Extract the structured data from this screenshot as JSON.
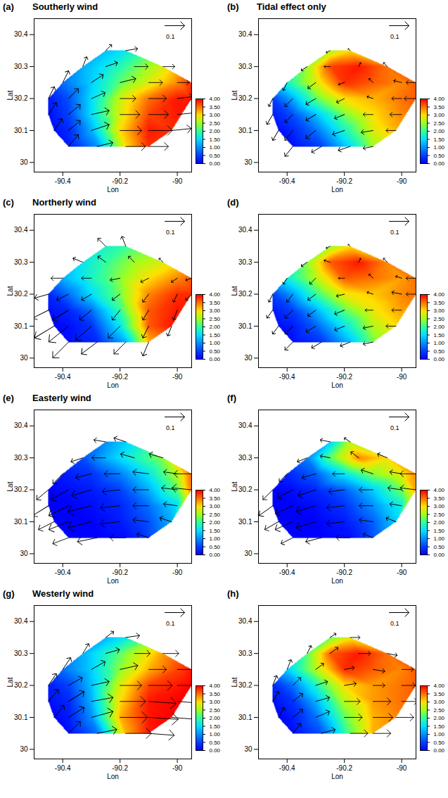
{
  "chart_data": {
    "type": "vector_map",
    "x_label": "Lon",
    "y_label": "Lat",
    "xlim": [
      -90.5,
      -89.95
    ],
    "xticks": [
      -90.4,
      -90.2,
      -90
    ],
    "ylim": [
      29.97,
      30.45
    ],
    "yticks": [
      30,
      30.1,
      30.2,
      30.3,
      30.4
    ],
    "colorbar": {
      "range": [
        0,
        4
      ],
      "ticks": [
        {
          "value": 0,
          "label": "0.00"
        },
        {
          "value": 0.5,
          "label": "0.50"
        },
        {
          "value": 1,
          "label": "1.00"
        },
        {
          "value": 1.5,
          "label": "1.50"
        },
        {
          "value": 2,
          "label": "2.00"
        },
        {
          "value": 2.5,
          "label": "2.50"
        },
        {
          "value": 3,
          "label": "3.00"
        },
        {
          "value": 3.5,
          "label": "3.50"
        },
        {
          "value": 4,
          "label": "4.00"
        }
      ],
      "colors": [
        "#0000ff",
        "#0040ff",
        "#0090ff",
        "#00e0ff",
        "#30ffa0",
        "#a0ff20",
        "#ffe000",
        "#ff7000",
        "#ff0000"
      ]
    },
    "reference_vector": 0.1,
    "lon": [
      -90.38,
      -90.28,
      -90.18,
      -90.1,
      -90.43,
      -90.38,
      -90.3,
      -90.2,
      -90.1,
      -90.02,
      -90.45,
      -90.38,
      -90.3,
      -90.2,
      -90.1,
      -90,
      -90.45,
      -90.38,
      -90.3,
      -90.2,
      -90.1,
      -90,
      -89.95,
      -90.4,
      -90.3,
      -90.2,
      -90.1,
      -90,
      -89.95,
      -90.33,
      -90.25,
      -90.15,
      -90.05,
      -90.25,
      -90.18
    ],
    "lat": [
      30.05,
      30.05,
      30.05,
      30.05,
      30.1,
      30.1,
      30.1,
      30.1,
      30.1,
      30.1,
      30.15,
      30.15,
      30.15,
      30.15,
      30.15,
      30.15,
      30.2,
      30.2,
      30.2,
      30.2,
      30.2,
      30.2,
      30.2,
      30.25,
      30.25,
      30.25,
      30.25,
      30.25,
      30.25,
      30.3,
      30.3,
      30.3,
      30.3,
      30.35,
      30.35
    ],
    "panels": [
      {
        "letter": "(a)",
        "title": "Southerly wind",
        "values": [
          0.2,
          1.0,
          3.0,
          3.8,
          0.1,
          0.3,
          1.2,
          3.0,
          3.9,
          3.8,
          0.1,
          0.5,
          1.5,
          2.8,
          3.7,
          3.9,
          0.2,
          0.6,
          1.5,
          2.7,
          3.5,
          3.9,
          3.9,
          0.8,
          1.4,
          2.2,
          2.8,
          3.4,
          3.8,
          1.2,
          1.6,
          2.2,
          2.8,
          1.3,
          1.6
        ],
        "u": [
          0.05,
          0.08,
          0.1,
          0.1,
          0.04,
          0.06,
          0.09,
          0.11,
          0.12,
          0.1,
          0.04,
          0.06,
          0.09,
          0.1,
          0.1,
          0.1,
          0.03,
          0.05,
          0.07,
          0.08,
          0.09,
          0.08,
          0.08,
          0.03,
          0.06,
          0.08,
          0.07,
          0.06,
          0.08,
          0.02,
          0.06,
          0.07,
          0.06,
          0.03,
          0.06
        ],
        "v": [
          0.06,
          0.02,
          0,
          0,
          0.06,
          0.05,
          0.03,
          0,
          0,
          0.01,
          0.06,
          0.05,
          0.02,
          0,
          0,
          0.01,
          0.06,
          0.05,
          0.03,
          0,
          0,
          0.01,
          0.02,
          0.06,
          0.04,
          0.02,
          0,
          0,
          0.02,
          0.05,
          0.02,
          0,
          0,
          0.03,
          0.01
        ]
      },
      {
        "letter": "(b)",
        "title": "Tidal effect only",
        "values": [
          0.1,
          0.5,
          1.5,
          2.5,
          0.1,
          0.3,
          0.8,
          1.8,
          2.8,
          3.2,
          0.2,
          0.6,
          1.3,
          2.3,
          3.0,
          3.4,
          0.5,
          1.2,
          2.2,
          3.0,
          3.2,
          3.5,
          3.6,
          1.8,
          2.8,
          3.8,
          3.6,
          3.4,
          3.6,
          2.5,
          3.7,
          3.9,
          3.5,
          2.6,
          3.0
        ],
        "u": [
          -0.04,
          -0.05,
          -0.06,
          -0.05,
          -0.03,
          -0.04,
          -0.05,
          -0.06,
          -0.06,
          -0.05,
          -0.03,
          -0.04,
          -0.05,
          -0.05,
          -0.05,
          -0.06,
          -0.02,
          -0.04,
          -0.05,
          -0.04,
          -0.03,
          -0.05,
          -0.06,
          -0.02,
          -0.04,
          -0.03,
          -0.02,
          -0.04,
          -0.05,
          -0.03,
          -0.03,
          0.01,
          -0.02,
          -0.02,
          -0.01
        ],
        "v": [
          -0.05,
          -0.03,
          -0.02,
          -0.01,
          -0.05,
          -0.05,
          -0.04,
          -0.02,
          -0.01,
          0,
          -0.05,
          -0.04,
          -0.03,
          -0.02,
          0,
          0,
          -0.04,
          -0.04,
          -0.03,
          -0.02,
          0.01,
          0,
          0,
          -0.04,
          -0.03,
          -0.01,
          0.02,
          0.01,
          0,
          -0.02,
          0,
          0.02,
          0.02,
          -0.01,
          0.01
        ]
      },
      {
        "letter": "(c)",
        "title": "Northerly wind",
        "values": [
          0.1,
          0.3,
          1.2,
          3.2,
          0.0,
          0.1,
          0.4,
          1.6,
          3.6,
          3.9,
          0.1,
          0.3,
          0.8,
          2.0,
          3.6,
          3.9,
          0.3,
          0.8,
          1.5,
          2.3,
          3.4,
          3.8,
          3.8,
          1.2,
          1.8,
          2.4,
          3.0,
          3.4,
          3.6,
          1.6,
          2.0,
          2.5,
          2.8,
          1.8,
          2.0
        ],
        "u": [
          -0.08,
          -0.08,
          -0.06,
          -0.03,
          -0.1,
          -0.1,
          -0.08,
          -0.06,
          -0.03,
          -0.02,
          -0.08,
          -0.08,
          -0.06,
          -0.04,
          -0.03,
          -0.02,
          -0.07,
          -0.06,
          -0.05,
          -0.04,
          -0.03,
          -0.02,
          -0.03,
          -0.06,
          -0.05,
          -0.05,
          -0.04,
          -0.03,
          -0.03,
          -0.05,
          -0.04,
          -0.03,
          -0.02,
          -0.04,
          -0.02
        ],
        "v": [
          -0.08,
          -0.06,
          -0.06,
          -0.07,
          -0.06,
          -0.08,
          -0.07,
          -0.06,
          -0.06,
          -0.05,
          -0.04,
          -0.05,
          -0.05,
          -0.05,
          -0.05,
          -0.05,
          -0.02,
          -0.03,
          -0.03,
          -0.03,
          -0.04,
          -0.04,
          -0.03,
          0,
          0,
          -0.01,
          -0.02,
          -0.02,
          -0.01,
          0.02,
          0.03,
          0.03,
          0.02,
          0.04,
          0.05
        ]
      },
      {
        "letter": "(d)",
        "values": [
          0.1,
          0.4,
          1.3,
          2.3,
          0.1,
          0.2,
          0.7,
          1.6,
          2.6,
          3.0,
          0.2,
          0.5,
          1.2,
          2.2,
          2.9,
          3.3,
          0.5,
          1.1,
          2.0,
          2.9,
          3.1,
          3.4,
          3.5,
          1.7,
          2.6,
          3.6,
          3.5,
          3.3,
          3.5,
          2.4,
          3.6,
          3.9,
          3.4,
          2.5,
          3.0
        ],
        "u": [
          -0.04,
          -0.05,
          -0.05,
          -0.05,
          -0.03,
          -0.04,
          -0.05,
          -0.05,
          -0.05,
          -0.05,
          -0.03,
          -0.04,
          -0.04,
          -0.05,
          -0.04,
          -0.05,
          -0.02,
          -0.03,
          -0.04,
          -0.04,
          -0.03,
          -0.05,
          -0.05,
          -0.02,
          -0.03,
          -0.03,
          -0.02,
          -0.03,
          -0.05,
          -0.03,
          -0.03,
          0.01,
          -0.02,
          -0.02,
          -0.01
        ],
        "v": [
          -0.04,
          -0.03,
          -0.02,
          -0.01,
          -0.04,
          -0.04,
          -0.03,
          -0.02,
          -0.01,
          0,
          -0.04,
          -0.04,
          -0.03,
          -0.02,
          0,
          0,
          -0.04,
          -0.04,
          -0.03,
          -0.01,
          0.01,
          0.01,
          0,
          -0.03,
          -0.03,
          0,
          0.02,
          0.01,
          0,
          -0.02,
          0.01,
          0.02,
          0.02,
          -0.01,
          0.01
        ]
      },
      {
        "letter": "(e)",
        "title": "Easterly wind",
        "values": [
          0.0,
          0.0,
          0.1,
          0.5,
          0.0,
          0.0,
          0.0,
          0.2,
          0.6,
          1.2,
          0.0,
          0.0,
          0.1,
          0.3,
          0.8,
          1.5,
          0.0,
          0.1,
          0.2,
          0.5,
          1.2,
          2.2,
          3.5,
          0.2,
          0.4,
          0.9,
          1.6,
          2.6,
          3.6,
          0.6,
          1.2,
          1.8,
          2.4,
          1.0,
          1.4
        ],
        "u": [
          -0.08,
          -0.1,
          -0.08,
          -0.06,
          -0.08,
          -0.1,
          -0.12,
          -0.1,
          -0.08,
          -0.06,
          -0.08,
          -0.1,
          -0.12,
          -0.1,
          -0.08,
          -0.07,
          -0.06,
          -0.09,
          -0.1,
          -0.09,
          -0.08,
          -0.08,
          -0.1,
          -0.05,
          -0.08,
          -0.08,
          -0.08,
          -0.07,
          -0.09,
          -0.06,
          -0.07,
          -0.07,
          -0.07,
          -0.06,
          -0.06
        ],
        "v": [
          -0.03,
          -0.02,
          0,
          0.02,
          -0.04,
          -0.04,
          -0.03,
          -0.01,
          0.01,
          0.02,
          -0.05,
          -0.05,
          -0.03,
          -0.01,
          0,
          0.01,
          -0.05,
          -0.05,
          -0.03,
          -0.01,
          0,
          0.01,
          0.01,
          -0.05,
          -0.02,
          0,
          0.01,
          0.01,
          0,
          -0.02,
          0,
          0.02,
          0.02,
          0.01,
          0.02
        ]
      },
      {
        "letter": "(f)",
        "values": [
          0.0,
          0.0,
          0.1,
          0.6,
          0.0,
          0.0,
          0.0,
          0.2,
          0.7,
          1.4,
          0.0,
          0.0,
          0.1,
          0.4,
          1.0,
          1.7,
          0.0,
          0.1,
          0.3,
          0.7,
          1.4,
          2.3,
          3.3,
          0.3,
          0.7,
          1.6,
          2.4,
          2.9,
          3.4,
          0.9,
          2.2,
          3.4,
          3.0,
          1.4,
          2.6
        ],
        "u": [
          -0.06,
          -0.08,
          -0.07,
          -0.05,
          -0.07,
          -0.09,
          -0.1,
          -0.09,
          -0.07,
          -0.05,
          -0.07,
          -0.09,
          -0.1,
          -0.09,
          -0.07,
          -0.06,
          -0.05,
          -0.08,
          -0.09,
          -0.08,
          -0.07,
          -0.07,
          -0.08,
          -0.04,
          -0.07,
          -0.06,
          -0.06,
          -0.06,
          -0.08,
          -0.05,
          -0.05,
          -0.04,
          -0.05,
          -0.05,
          -0.03
        ],
        "v": [
          -0.03,
          -0.02,
          0,
          0.02,
          -0.04,
          -0.04,
          -0.03,
          -0.01,
          0.01,
          0.02,
          -0.05,
          -0.04,
          -0.03,
          -0.01,
          0,
          0.01,
          -0.05,
          -0.04,
          -0.03,
          -0.01,
          0,
          0.01,
          0.01,
          -0.04,
          -0.02,
          0,
          0.02,
          0.01,
          0,
          -0.02,
          0.01,
          0.03,
          0.02,
          0.01,
          0.02
        ]
      },
      {
        "letter": "(g)",
        "title": "Westerly wind",
        "values": [
          0.1,
          0.8,
          3.2,
          3.9,
          0.0,
          0.2,
          1.0,
          3.2,
          3.9,
          4.0,
          0.1,
          0.3,
          1.2,
          3.0,
          3.9,
          4.0,
          0.2,
          0.5,
          1.3,
          2.8,
          3.7,
          3.9,
          4.0,
          0.8,
          1.4,
          2.4,
          3.2,
          3.7,
          3.9,
          1.2,
          1.8,
          2.6,
          3.3,
          1.2,
          1.6
        ],
        "u": [
          0.06,
          0.1,
          0.13,
          0.13,
          0.05,
          0.08,
          0.11,
          0.14,
          0.15,
          0.13,
          0.05,
          0.08,
          0.11,
          0.13,
          0.14,
          0.13,
          0.04,
          0.07,
          0.09,
          0.11,
          0.12,
          0.11,
          0.1,
          0.04,
          0.07,
          0.09,
          0.09,
          0.09,
          0.1,
          0.03,
          0.07,
          0.08,
          0.08,
          0.04,
          0.07
        ],
        "v": [
          0.06,
          0.02,
          0,
          -0.01,
          0.06,
          0.05,
          0.03,
          0,
          -0.01,
          -0.01,
          0.06,
          0.05,
          0.02,
          0,
          -0.01,
          -0.01,
          0.06,
          0.04,
          0.02,
          0,
          0,
          0,
          0.01,
          0.06,
          0.04,
          0.02,
          0,
          0,
          0.01,
          0.05,
          0.02,
          0,
          0,
          0.03,
          0.01
        ]
      },
      {
        "letter": "(h)",
        "values": [
          0.1,
          0.6,
          2.2,
          3.2,
          0.0,
          0.2,
          0.8,
          2.2,
          3.2,
          3.4,
          0.1,
          0.4,
          1.2,
          2.6,
          3.3,
          3.5,
          0.3,
          0.8,
          1.8,
          3.0,
          3.3,
          3.5,
          3.6,
          1.4,
          2.6,
          3.8,
          3.6,
          3.4,
          3.6,
          2.2,
          3.6,
          3.9,
          3.5,
          2.2,
          2.9
        ],
        "u": [
          0.04,
          0.07,
          0.09,
          0.09,
          0.03,
          0.05,
          0.07,
          0.09,
          0.1,
          0.09,
          0.03,
          0.05,
          0.07,
          0.08,
          0.09,
          0.08,
          0.02,
          0.04,
          0.06,
          0.06,
          0.06,
          0.07,
          0.07,
          0.02,
          0.04,
          0.05,
          0.06,
          0.06,
          0.07,
          0.02,
          0.04,
          0.06,
          0.05,
          0.03,
          0.05
        ],
        "v": [
          0.05,
          0.02,
          0,
          0,
          0.05,
          0.04,
          0.03,
          0,
          0,
          0,
          0.05,
          0.04,
          0.02,
          0,
          0,
          0,
          0.05,
          0.04,
          0.02,
          0.01,
          0,
          0,
          0.01,
          0.05,
          0.03,
          0.01,
          -0.01,
          0,
          0.01,
          0.04,
          0.03,
          0,
          -0.01,
          0.02,
          0
        ]
      }
    ]
  }
}
